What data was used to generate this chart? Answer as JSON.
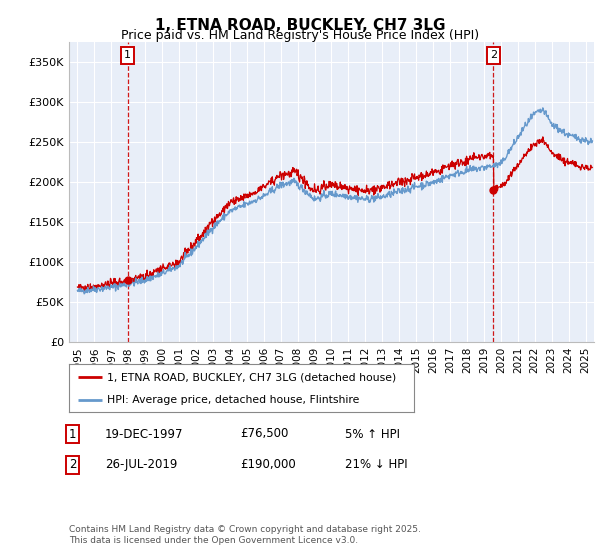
{
  "title": "1, ETNA ROAD, BUCKLEY, CH7 3LG",
  "subtitle": "Price paid vs. HM Land Registry's House Price Index (HPI)",
  "legend_property": "1, ETNA ROAD, BUCKLEY, CH7 3LG (detached house)",
  "legend_hpi": "HPI: Average price, detached house, Flintshire",
  "annotation1_label": "1",
  "annotation1_date": "19-DEC-1997",
  "annotation1_price": "£76,500",
  "annotation1_pct": "5% ↑ HPI",
  "annotation2_label": "2",
  "annotation2_date": "26-JUL-2019",
  "annotation2_price": "£190,000",
  "annotation2_pct": "21% ↓ HPI",
  "footer": "Contains HM Land Registry data © Crown copyright and database right 2025.\nThis data is licensed under the Open Government Licence v3.0.",
  "sale1_year": 1997.97,
  "sale1_price": 76500,
  "sale2_year": 2019.56,
  "sale2_price": 190000,
  "property_color": "#cc0000",
  "hpi_color": "#6699cc",
  "sale_marker_color": "#cc0000",
  "vline_color": "#cc0000",
  "ylim_min": 0,
  "ylim_max": 375000,
  "xlim_min": 1994.5,
  "xlim_max": 2025.5,
  "yticks": [
    0,
    50000,
    100000,
    150000,
    200000,
    250000,
    300000,
    350000
  ],
  "ytick_labels": [
    "£0",
    "£50K",
    "£100K",
    "£150K",
    "£200K",
    "£250K",
    "£300K",
    "£350K"
  ],
  "xticks": [
    1995,
    1996,
    1997,
    1998,
    1999,
    2000,
    2001,
    2002,
    2003,
    2004,
    2005,
    2006,
    2007,
    2008,
    2009,
    2010,
    2011,
    2012,
    2013,
    2014,
    2015,
    2016,
    2017,
    2018,
    2019,
    2020,
    2021,
    2022,
    2023,
    2024,
    2025
  ],
  "background_color": "#ffffff",
  "plot_bg_color": "#e8eef8",
  "grid_color": "#ffffff"
}
